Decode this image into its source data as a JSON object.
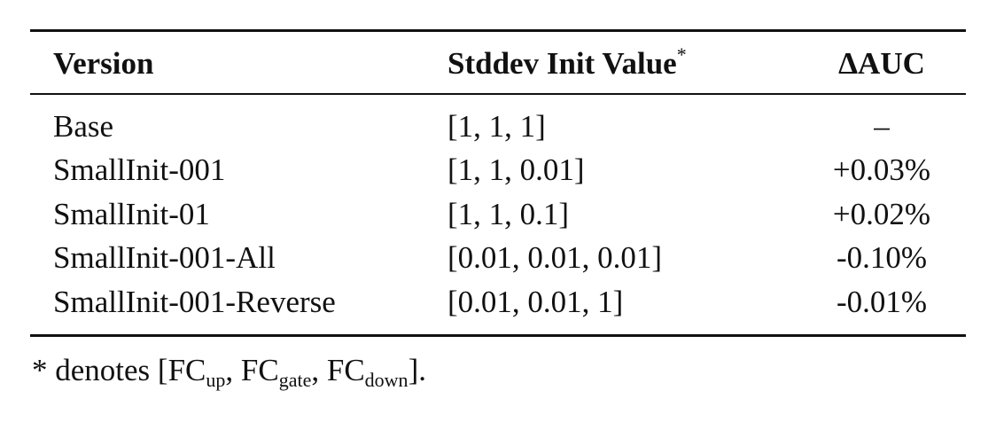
{
  "table": {
    "headers": [
      {
        "label": "Version"
      },
      {
        "label": "Stddev Init Value",
        "note": "*"
      },
      {
        "label": "ΔAUC"
      }
    ],
    "rows": [
      [
        "Base",
        "[1, 1, 1]",
        "–"
      ],
      [
        "SmallInit-001",
        "[1, 1, 0.01]",
        "+0.03%"
      ],
      [
        "SmallInit-01",
        "[1, 1, 0.1]",
        "+0.02%"
      ],
      [
        "SmallInit-001-All",
        "[0.01, 0.01, 0.01]",
        "-0.10%"
      ],
      [
        "SmallInit-001-Reverse",
        "[0.01, 0.01, 1]",
        "-0.01%"
      ]
    ]
  },
  "footnote": {
    "marker": "*",
    "text": "denotes [",
    "terms": [
      {
        "base": "FC",
        "sub": "up"
      },
      {
        "base": "FC",
        "sub": "gate"
      },
      {
        "base": "FC",
        "sub": "down"
      }
    ],
    "separator": ", ",
    "end": "]."
  }
}
